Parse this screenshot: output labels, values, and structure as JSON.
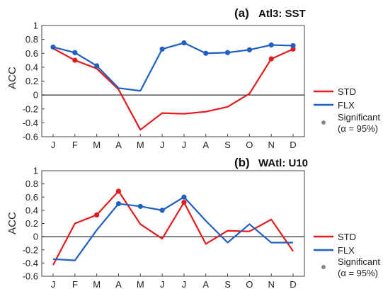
{
  "chart_data": [
    {
      "type": "line",
      "panel_tag": "(a)",
      "title": "Atl3: SST",
      "ylabel": "ACC",
      "xlabel": "",
      "categories": [
        "J",
        "F",
        "M",
        "A",
        "M",
        "J",
        "J",
        "A",
        "S",
        "O",
        "N",
        "D"
      ],
      "ylim": [
        -0.6,
        1
      ],
      "yticks": [
        "-0.6",
        "-0.4",
        "-0.2",
        "0",
        "0.2",
        "0.4",
        "0.6",
        "0.8",
        "1"
      ],
      "grid": false,
      "zero_line": true,
      "legend_position": "right",
      "series": [
        {
          "name": "STD",
          "color": "#e41a1c",
          "values": [
            0.67,
            0.5,
            0.38,
            0.08,
            -0.5,
            -0.26,
            -0.27,
            -0.24,
            -0.17,
            0.02,
            0.52,
            0.66
          ],
          "significant": [
            false,
            true,
            false,
            false,
            false,
            false,
            false,
            false,
            false,
            false,
            true,
            true
          ]
        },
        {
          "name": "FLX",
          "color": "#1f5fbf",
          "values": [
            0.69,
            0.61,
            0.42,
            0.1,
            0.06,
            0.66,
            0.75,
            0.6,
            0.61,
            0.65,
            0.72,
            0.71
          ],
          "significant": [
            true,
            true,
            true,
            false,
            false,
            true,
            true,
            true,
            true,
            true,
            true,
            true
          ]
        }
      ],
      "legend": {
        "std": "STD",
        "flx": "FLX",
        "sig_line1": "Significant",
        "sig_line2": "(α = 95%)"
      }
    },
    {
      "type": "line",
      "panel_tag": "(b)",
      "title": "WAtl: U10",
      "ylabel": "ACC",
      "xlabel": "",
      "categories": [
        "J",
        "F",
        "M",
        "A",
        "M",
        "J",
        "J",
        "A",
        "S",
        "O",
        "N",
        "D"
      ],
      "ylim": [
        -0.6,
        1
      ],
      "yticks": [
        "-0.6",
        "-0.4",
        "-0.2",
        "0",
        "0.2",
        "0.4",
        "0.6",
        "0.8",
        "1"
      ],
      "grid": false,
      "zero_line": true,
      "legend_position": "right",
      "series": [
        {
          "name": "STD",
          "color": "#e41a1c",
          "values": [
            -0.43,
            0.2,
            0.33,
            0.69,
            0.19,
            -0.03,
            0.52,
            -0.11,
            0.09,
            0.08,
            0.26,
            -0.22
          ],
          "significant": [
            false,
            false,
            true,
            true,
            false,
            false,
            true,
            false,
            false,
            false,
            false,
            false
          ]
        },
        {
          "name": "FLX",
          "color": "#1f5fbf",
          "values": [
            -0.34,
            -0.36,
            0.1,
            0.5,
            0.46,
            0.4,
            0.6,
            0.24,
            -0.09,
            0.19,
            -0.09,
            -0.09
          ],
          "significant": [
            false,
            false,
            false,
            true,
            true,
            true,
            true,
            false,
            false,
            false,
            false,
            false
          ]
        }
      ],
      "legend": {
        "std": "STD",
        "flx": "FLX",
        "sig_line1": "Significant",
        "sig_line2": "(α = 95%)"
      }
    }
  ]
}
